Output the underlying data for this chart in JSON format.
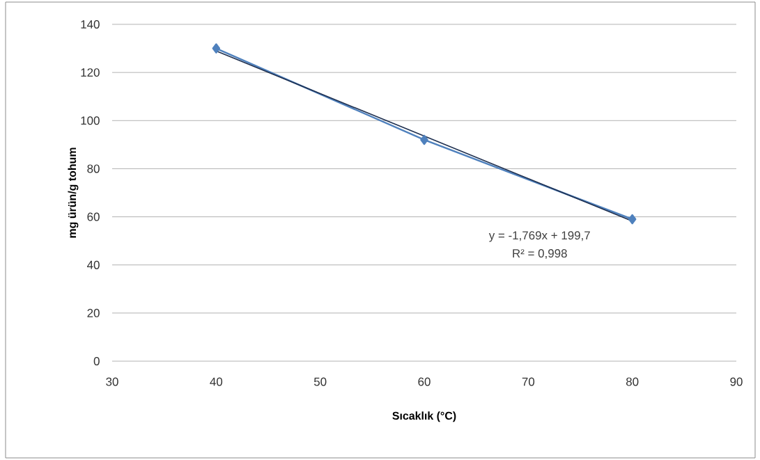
{
  "chart_data": {
    "type": "line",
    "xlabel": "Sıcaklık (°C)",
    "ylabel": "mg ürün/g tohum",
    "x": [
      40,
      60,
      80
    ],
    "series": [
      {
        "color": "#4f81bd",
        "values": [
          130,
          92,
          59
        ]
      },
      {
        "type": "line",
        "color": "#1f3050",
        "x": [
          40,
          80
        ],
        "values": [
          128.9,
          58.2
        ],
        "marker": "none"
      }
    ],
    "xlim": [
      30,
      90
    ],
    "xticks": [
      30,
      40,
      50,
      60,
      70,
      80,
      90
    ],
    "ylim": [
      0,
      140
    ],
    "yticks": [
      0,
      20,
      40,
      60,
      80,
      100,
      120,
      140
    ],
    "grid": "y",
    "marker": "diamond",
    "line_style": "solid",
    "annotations": [
      "y = -1,769x + 199,7",
      "R² = 0,998"
    ]
  }
}
